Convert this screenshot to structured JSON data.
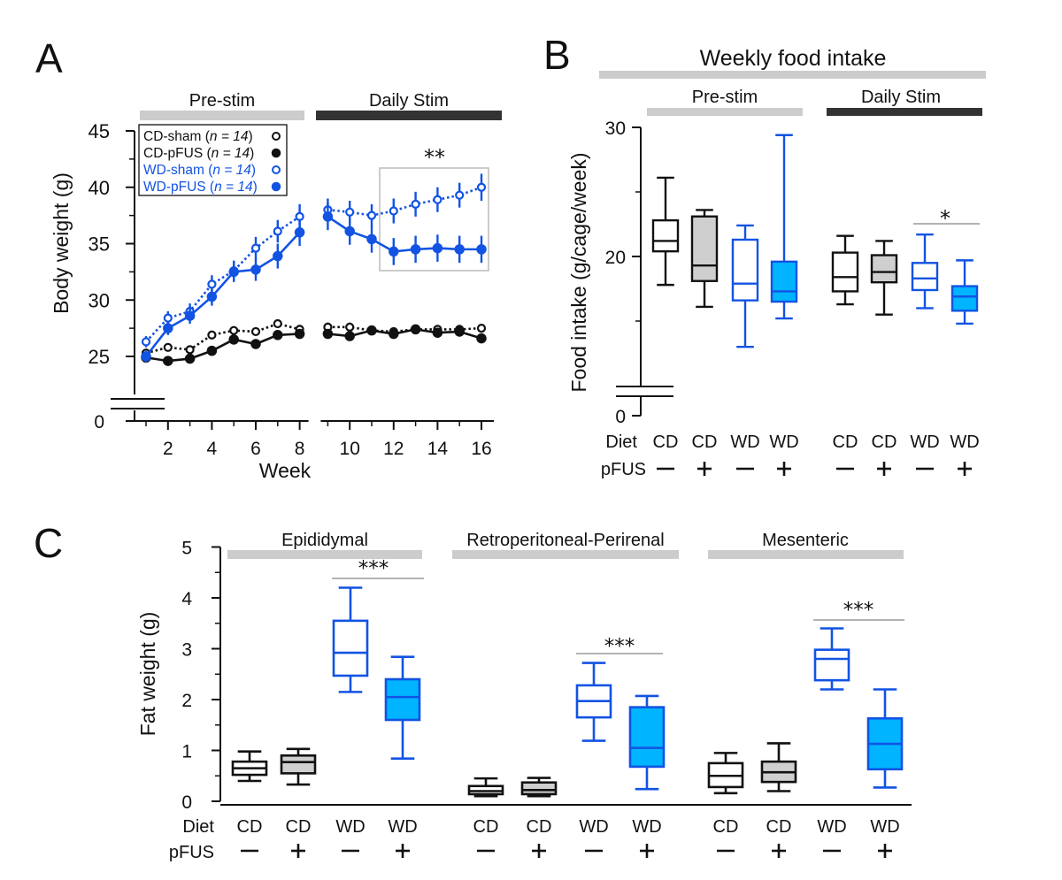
{
  "colors": {
    "black": "#111111",
    "blue": "#1253e3",
    "gray_bar": "#cccccc",
    "dark_bar": "#333333",
    "box_gray": "#cfcfcf",
    "box_blue": "#00b4ff",
    "sig_line": "#9a9a9a",
    "inset_box": "#bbbbbb"
  },
  "panels": {
    "a_letter": "A",
    "b_letter": "B",
    "c_letter": "C"
  },
  "chart_data": [
    {
      "id": "A",
      "type": "line",
      "bars": {
        "pre": "Pre-stim",
        "stim": "Daily Stim"
      },
      "xlabel": "Week",
      "ylabel": "Body weight (g)",
      "ylim": [
        22.5,
        45
      ],
      "y_zero_label": "0",
      "yticks": [
        25,
        30,
        35,
        40,
        45
      ],
      "xticks": [
        2,
        4,
        6,
        8,
        10,
        12,
        14,
        16
      ],
      "legend": {
        "placement": "top-left",
        "entries": [
          {
            "key": "cd_sham",
            "name": "CD-sham",
            "n_label": "n = 14"
          },
          {
            "key": "cd_pfus",
            "name": "CD-pFUS",
            "n_label": "n = 14"
          },
          {
            "key": "wd_sham",
            "name": "WD-sham",
            "n_label": "n = 14"
          },
          {
            "key": "wd_pfus",
            "name": "WD-pFUS",
            "n_label": "n = 14"
          }
        ]
      },
      "significance": {
        "label": "**",
        "weeks": [
          12,
          16
        ]
      },
      "series": [
        {
          "key": "cd_sham",
          "color": "black",
          "filled": false,
          "dotted": true,
          "x": [
            1,
            2,
            3,
            4,
            5,
            6,
            7,
            8,
            9,
            10,
            11,
            12,
            13,
            14,
            15,
            16
          ],
          "y": [
            25.3,
            25.8,
            25.6,
            26.9,
            27.3,
            27.2,
            27.9,
            27.4,
            27.6,
            27.6,
            27.3,
            27.2,
            27.4,
            27.4,
            27.4,
            27.5
          ],
          "err": [
            0.3,
            0.3,
            0.3,
            0.3,
            0.3,
            0.3,
            0.3,
            0.4,
            0.4,
            0.4,
            0.3,
            0.3,
            0.3,
            0.3,
            0.3,
            0.3
          ]
        },
        {
          "key": "cd_pfus",
          "color": "black",
          "filled": true,
          "dotted": false,
          "x": [
            1,
            2,
            3,
            4,
            5,
            6,
            7,
            8,
            9,
            10,
            11,
            12,
            13,
            14,
            15,
            16
          ],
          "y": [
            24.9,
            24.6,
            24.8,
            25.5,
            26.5,
            26.1,
            26.9,
            27.0,
            27.0,
            26.8,
            27.3,
            27.0,
            27.4,
            27.1,
            27.2,
            26.6
          ],
          "err": [
            0.3,
            0.3,
            0.3,
            0.3,
            0.4,
            0.4,
            0.4,
            0.4,
            0.4,
            0.4,
            0.3,
            0.3,
            0.3,
            0.3,
            0.3,
            0.3
          ]
        },
        {
          "key": "wd_sham",
          "color": "blue",
          "filled": false,
          "dotted": true,
          "x": [
            1,
            2,
            3,
            4,
            5,
            6,
            7,
            8,
            9,
            10,
            11,
            12,
            13,
            14,
            15,
            16
          ],
          "y": [
            26.3,
            28.4,
            29.0,
            31.4,
            32.6,
            34.6,
            36.1,
            37.4,
            38.0,
            37.8,
            37.5,
            37.9,
            38.5,
            38.9,
            39.3,
            40.0
          ],
          "err": [
            0.5,
            0.6,
            0.7,
            0.8,
            0.9,
            1.0,
            1.0,
            1.1,
            1.0,
            1.0,
            1.0,
            1.1,
            1.1,
            1.1,
            1.1,
            1.2
          ]
        },
        {
          "key": "wd_pfus",
          "color": "blue",
          "filled": true,
          "dotted": false,
          "x": [
            1,
            2,
            3,
            4,
            5,
            6,
            7,
            8,
            9,
            10,
            11,
            12,
            13,
            14,
            15,
            16
          ],
          "y": [
            25.0,
            27.5,
            28.6,
            30.3,
            32.5,
            32.7,
            33.9,
            36.0,
            37.4,
            36.1,
            35.4,
            34.3,
            34.5,
            34.6,
            34.5,
            34.5
          ],
          "err": [
            0.5,
            0.6,
            0.7,
            0.8,
            0.9,
            1.0,
            1.1,
            1.2,
            1.2,
            1.2,
            1.2,
            1.2,
            1.2,
            1.2,
            1.2,
            1.2
          ]
        }
      ]
    },
    {
      "id": "B",
      "type": "box",
      "title": "Weekly food intake",
      "group_titles": [
        "Pre-stim",
        "Daily Stim"
      ],
      "ylabel": "Food intake (g/cage/week)",
      "ylim": [
        0,
        30
      ],
      "yticks": [
        0,
        20,
        30
      ],
      "row_labels": {
        "diet": "Diet",
        "pfus": "pFUS"
      },
      "significance": {
        "label": "*",
        "between": [
          6,
          7
        ]
      },
      "boxes": [
        {
          "diet": "CD",
          "pfus": "−",
          "color": "black",
          "fill": "none",
          "min": 17.8,
          "q1": 20.4,
          "median": 21.2,
          "q3": 22.8,
          "max": 26.1
        },
        {
          "diet": "CD",
          "pfus": "+",
          "color": "black",
          "fill": "gray",
          "min": 16.1,
          "q1": 18.1,
          "median": 19.3,
          "q3": 23.1,
          "max": 23.6
        },
        {
          "diet": "WD",
          "pfus": "−",
          "color": "blue",
          "fill": "none",
          "min": 13.0,
          "q1": 16.6,
          "median": 17.9,
          "q3": 21.3,
          "max": 22.4
        },
        {
          "diet": "WD",
          "pfus": "+",
          "color": "blue",
          "fill": "blue",
          "min": 15.2,
          "q1": 16.5,
          "median": 17.3,
          "q3": 19.6,
          "max": 29.4
        },
        {
          "diet": "CD",
          "pfus": "−",
          "color": "black",
          "fill": "none",
          "min": 16.3,
          "q1": 17.3,
          "median": 18.4,
          "q3": 20.3,
          "max": 21.6
        },
        {
          "diet": "CD",
          "pfus": "+",
          "color": "black",
          "fill": "gray",
          "min": 15.5,
          "q1": 18.0,
          "median": 18.8,
          "q3": 20.1,
          "max": 21.2
        },
        {
          "diet": "WD",
          "pfus": "−",
          "color": "blue",
          "fill": "none",
          "min": 16.0,
          "q1": 17.4,
          "median": 18.3,
          "q3": 19.5,
          "max": 21.7
        },
        {
          "diet": "WD",
          "pfus": "+",
          "color": "blue",
          "fill": "blue",
          "min": 14.8,
          "q1": 15.8,
          "median": 16.9,
          "q3": 17.7,
          "max": 19.7
        }
      ]
    },
    {
      "id": "C",
      "type": "box",
      "group_titles": [
        "Epididymal",
        "Retroperitoneal-Perirenal",
        "Mesenteric"
      ],
      "ylabel": "Fat weight (g)",
      "ylim": [
        0,
        5
      ],
      "yticks": [
        0,
        1,
        2,
        3,
        4,
        5
      ],
      "row_labels": {
        "diet": "Diet",
        "pfus": "pFUS"
      },
      "significance": [
        {
          "label": "***",
          "between": [
            2,
            3
          ]
        },
        {
          "label": "***",
          "between": [
            6,
            7
          ]
        },
        {
          "label": "***",
          "between": [
            10,
            11
          ]
        }
      ],
      "boxes": [
        {
          "diet": "CD",
          "pfus": "−",
          "color": "black",
          "fill": "none",
          "min": 0.4,
          "q1": 0.52,
          "median": 0.65,
          "q3": 0.78,
          "max": 0.98
        },
        {
          "diet": "CD",
          "pfus": "+",
          "color": "black",
          "fill": "gray",
          "min": 0.33,
          "q1": 0.55,
          "median": 0.77,
          "q3": 0.9,
          "max": 1.03
        },
        {
          "diet": "WD",
          "pfus": "−",
          "color": "blue",
          "fill": "none",
          "min": 2.15,
          "q1": 2.47,
          "median": 2.92,
          "q3": 3.55,
          "max": 4.2
        },
        {
          "diet": "WD",
          "pfus": "+",
          "color": "blue",
          "fill": "blue",
          "min": 0.84,
          "q1": 1.6,
          "median": 2.05,
          "q3": 2.4,
          "max": 2.84
        },
        {
          "diet": "CD",
          "pfus": "−",
          "color": "black",
          "fill": "none",
          "min": 0.1,
          "q1": 0.14,
          "median": 0.2,
          "q3": 0.3,
          "max": 0.45
        },
        {
          "diet": "CD",
          "pfus": "+",
          "color": "black",
          "fill": "gray",
          "min": 0.1,
          "q1": 0.14,
          "median": 0.22,
          "q3": 0.37,
          "max": 0.46
        },
        {
          "diet": "WD",
          "pfus": "−",
          "color": "blue",
          "fill": "none",
          "min": 1.19,
          "q1": 1.65,
          "median": 1.97,
          "q3": 2.28,
          "max": 2.72
        },
        {
          "diet": "WD",
          "pfus": "+",
          "color": "blue",
          "fill": "blue",
          "min": 0.24,
          "q1": 0.68,
          "median": 1.05,
          "q3": 1.85,
          "max": 2.07
        },
        {
          "diet": "CD",
          "pfus": "−",
          "color": "black",
          "fill": "none",
          "min": 0.16,
          "q1": 0.28,
          "median": 0.5,
          "q3": 0.75,
          "max": 0.95
        },
        {
          "diet": "CD",
          "pfus": "+",
          "color": "black",
          "fill": "gray",
          "min": 0.2,
          "q1": 0.38,
          "median": 0.57,
          "q3": 0.78,
          "max": 1.14
        },
        {
          "diet": "WD",
          "pfus": "−",
          "color": "blue",
          "fill": "none",
          "min": 2.2,
          "q1": 2.38,
          "median": 2.8,
          "q3": 2.98,
          "max": 3.4
        },
        {
          "diet": "WD",
          "pfus": "+",
          "color": "blue",
          "fill": "blue",
          "min": 0.27,
          "q1": 0.63,
          "median": 1.13,
          "q3": 1.63,
          "max": 2.2
        }
      ]
    }
  ]
}
